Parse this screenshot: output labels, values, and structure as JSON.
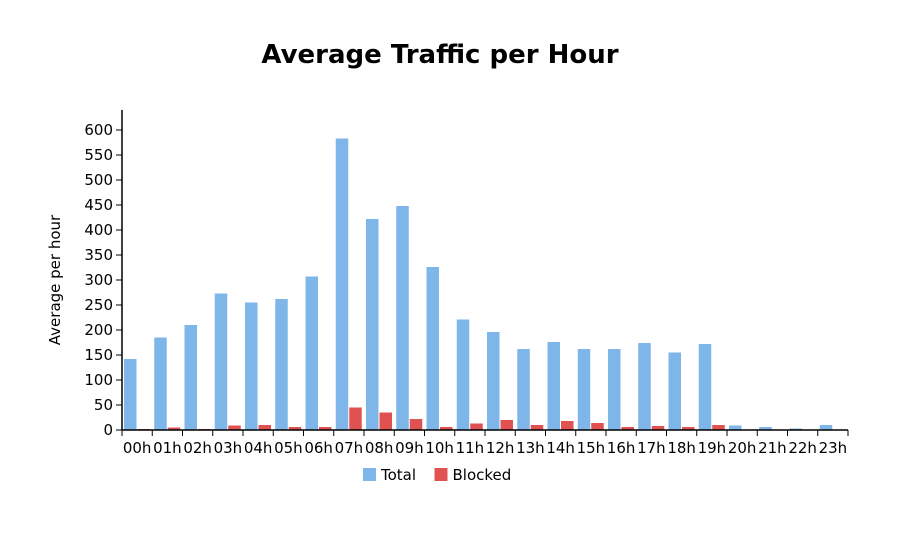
{
  "chart_data": {
    "type": "bar",
    "title": "Average Traffic per Hour",
    "xlabel": "",
    "ylabel": "Average per hour",
    "ylim": [
      0,
      640
    ],
    "yticks": [
      0,
      50,
      100,
      150,
      200,
      250,
      300,
      350,
      400,
      450,
      500,
      550,
      600
    ],
    "categories": [
      "00h",
      "01h",
      "02h",
      "03h",
      "04h",
      "05h",
      "06h",
      "07h",
      "08h",
      "09h",
      "10h",
      "11h",
      "12h",
      "13h",
      "14h",
      "15h",
      "16h",
      "17h",
      "18h",
      "19h",
      "20h",
      "21h",
      "22h",
      "23h"
    ],
    "series": [
      {
        "name": "Total",
        "color": "#7eb6ea",
        "values": [
          142,
          185,
          210,
          273,
          255,
          262,
          307,
          583,
          422,
          448,
          326,
          221,
          196,
          162,
          176,
          162,
          162,
          174,
          155,
          172,
          9,
          6,
          3,
          10
        ]
      },
      {
        "name": "Blocked",
        "color": "#e05252",
        "values": [
          2,
          5,
          2,
          9,
          10,
          6,
          6,
          45,
          35,
          22,
          6,
          13,
          20,
          10,
          18,
          14,
          6,
          8,
          6,
          10,
          0,
          0,
          0,
          0
        ]
      }
    ],
    "legend_position": "bottom",
    "grid": false
  }
}
